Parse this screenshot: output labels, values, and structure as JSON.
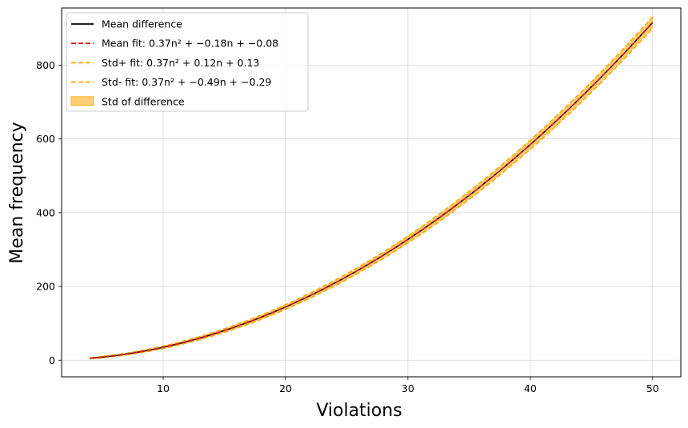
{
  "chart_data": {
    "type": "line",
    "title": "",
    "xlabel": "Violations",
    "ylabel": "Mean frequency",
    "xlim": [
      1.7,
      52.3
    ],
    "ylim": [
      -45,
      955
    ],
    "xticks": [
      10,
      20,
      30,
      40,
      50
    ],
    "yticks": [
      0,
      200,
      400,
      600,
      800
    ],
    "grid": true,
    "legend_position": "top-left",
    "x_range": [
      4,
      50
    ],
    "series": [
      {
        "name": "Mean difference",
        "kind": "line",
        "color": "#000000",
        "style": "solid",
        "coefficients": [
          0.37,
          -0.18,
          -0.08
        ],
        "values": [
          {
            "x": 4,
            "y": 5.1
          },
          {
            "x": 10,
            "y": 33.1
          },
          {
            "x": 20,
            "y": 144.3
          },
          {
            "x": 30,
            "y": 324.5
          },
          {
            "x": 40,
            "y": 584.7
          },
          {
            "x": 50,
            "y": 915.9
          }
        ]
      },
      {
        "name": "Mean fit",
        "legend_label": "Mean fit: 0.37n² + −0.18n + −0.08",
        "kind": "line",
        "color": "#e31a1c",
        "style": "dashed",
        "coefficients": [
          0.37,
          -0.18,
          -0.08
        ]
      },
      {
        "name": "Std+ fit",
        "legend_label": "Std+ fit: 0.37n² + 0.12n + 0.13",
        "kind": "line",
        "color": "#ffa500",
        "style": "dashed",
        "coefficients": [
          0.37,
          0.12,
          0.13
        ]
      },
      {
        "name": "Std- fit",
        "legend_label": "Std- fit: 0.37n² + −0.49n + −0.29",
        "kind": "line",
        "color": "#ffa500",
        "style": "dashed",
        "coefficients": [
          0.37,
          -0.49,
          -0.29
        ]
      },
      {
        "name": "Std of difference",
        "legend_label": "Std of difference",
        "kind": "band",
        "color": "#ffa500",
        "upper_coefficients": [
          0.37,
          0.12,
          0.13
        ],
        "lower_coefficients": [
          0.37,
          -0.49,
          -0.29
        ]
      }
    ]
  }
}
